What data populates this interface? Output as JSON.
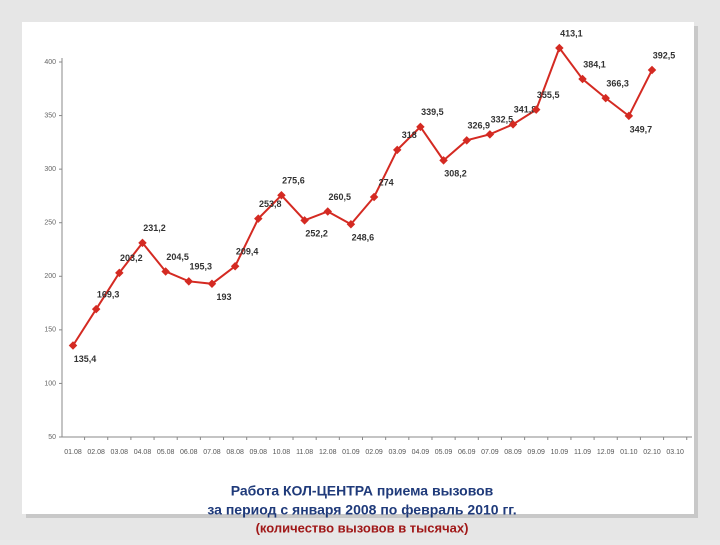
{
  "chart_data": {
    "type": "line",
    "title": "Работа КОЛ-ЦЕНТРА приема вызовов",
    "subtitle": "за период с января 2008 по февраль 2010 гг.",
    "note": "(количество вызовов в тысячах)",
    "categories": [
      "01.08",
      "02.08",
      "03.08",
      "04.08",
      "05.08",
      "06.08",
      "07.08",
      "08.08",
      "09.08",
      "10.08",
      "11.08",
      "12.08",
      "01.09",
      "02.09",
      "03.09",
      "04.09",
      "05.09",
      "06.09",
      "07.09",
      "08.09",
      "09.09",
      "10.09",
      "11.09",
      "12.09",
      "01.10",
      "02.10",
      "03.10"
    ],
    "series": [
      {
        "color": "#d42a22",
        "values": [
          135.4,
          169.3,
          203.2,
          231.2,
          204.5,
          195.3,
          193,
          209.4,
          253.8,
          275.6,
          252.2,
          260.5,
          248.6,
          274,
          318,
          339.5,
          308.2,
          326.9,
          332.5,
          341.8,
          355.5,
          413.1,
          384.1,
          366.3,
          349.7,
          392.5,
          null
        ],
        "value_labels": [
          "135,4",
          "169,3",
          "203,2",
          "231,2",
          "204,5",
          "195,3",
          "193",
          "209,4",
          "253,8",
          "275,6",
          "252,2",
          "260,5",
          "248,6",
          "274",
          "318",
          "339,5",
          "308,2",
          "326,9",
          "332,5",
          "341,8",
          "355,5",
          "413,1",
          "384,1",
          "366,3",
          "349,7",
          "392,5",
          null
        ]
      }
    ],
    "ylim": [
      50,
      400
    ],
    "yticks": [
      50,
      100,
      150,
      200,
      250,
      300,
      350,
      400
    ]
  }
}
